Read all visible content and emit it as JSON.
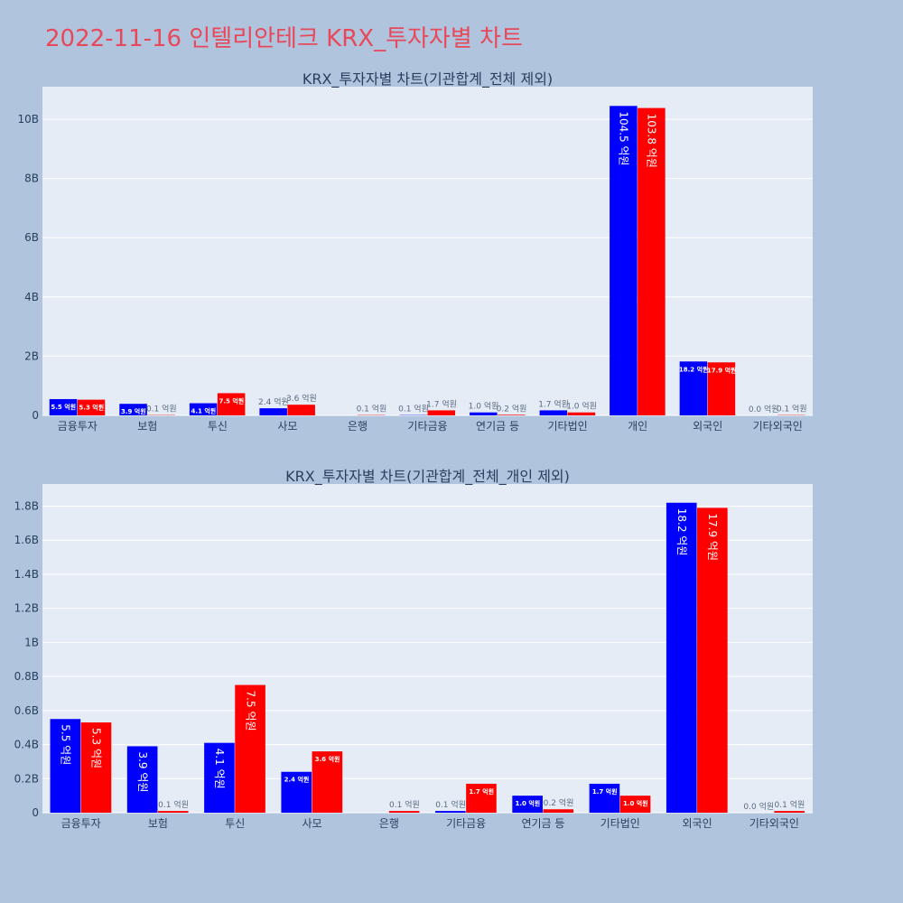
{
  "page_title": "2022-11-16 인텔리안테크 KRX_투자자별 차트",
  "colors": {
    "background": "#b0c4de",
    "plot_background": "#e5ecf6",
    "series_a": "#0000ff",
    "series_b": "#ff0000",
    "title_color": "#e8495a"
  },
  "chart_data": [
    {
      "type": "bar",
      "title": "KRX_투자자별 차트(기관합계_전체 제외)",
      "categories": [
        "금융투자",
        "보험",
        "투신",
        "사모",
        "은행",
        "기타금융",
        "연기금 등",
        "기타법인",
        "개인",
        "외국인",
        "기타외국인"
      ],
      "series": [
        {
          "color": "#0000ff",
          "values": [
            550000000.0,
            390000000.0,
            410000000.0,
            240000000.0,
            0,
            10000000.0,
            100000000.0,
            170000000.0,
            10450000000.0,
            1820000000.0,
            0
          ],
          "labels": [
            "5.5 억원",
            "3.9 억원",
            "4.1 억원",
            "2.4 억원",
            "",
            "0.1 억원",
            "1.0 억원",
            "1.7 억원",
            "104.5 억원",
            "18.2 억원",
            "0.0 억원"
          ]
        },
        {
          "color": "#ff0000",
          "values": [
            530000000.0,
            10000000.0,
            750000000.0,
            360000000.0,
            10000000.0,
            170000000.0,
            20000000.0,
            100000000.0,
            10380000000.0,
            1790000000.0,
            10000000.0
          ],
          "labels": [
            "5.3 억원",
            "0.1 억원",
            "7.5 억원",
            "3.6 억원",
            "0.1 억원",
            "1.7 억원",
            "0.2 억원",
            "1.0 억원",
            "103.8 억원",
            "17.9 억원",
            "0.1 억원"
          ]
        }
      ],
      "ylim": [
        0,
        11100000000.0
      ],
      "yticks": [
        0,
        2000000000.0,
        4000000000.0,
        6000000000.0,
        8000000000.0,
        10000000000.0
      ],
      "ytick_labels": [
        "0",
        "2B",
        "4B",
        "6B",
        "8B",
        "10B"
      ],
      "grid": true
    },
    {
      "type": "bar",
      "title": "KRX_투자자별 차트(기관합계_전체_개인 제외)",
      "categories": [
        "금융투자",
        "보험",
        "투신",
        "사모",
        "은행",
        "기타금융",
        "연기금 등",
        "기타법인",
        "외국인",
        "기타외국인"
      ],
      "series": [
        {
          "color": "#0000ff",
          "values": [
            550000000.0,
            390000000.0,
            410000000.0,
            240000000.0,
            0,
            10000000.0,
            100000000.0,
            170000000.0,
            1820000000.0,
            0
          ],
          "labels": [
            "5.5 억원",
            "3.9 억원",
            "4.1 억원",
            "2.4 억원",
            "",
            "0.1 억원",
            "1.0 억원",
            "1.7 억원",
            "18.2 억원",
            "0.0 억원"
          ]
        },
        {
          "color": "#ff0000",
          "values": [
            530000000.0,
            10000000.0,
            750000000.0,
            360000000.0,
            10000000.0,
            170000000.0,
            20000000.0,
            100000000.0,
            1790000000.0,
            10000000.0
          ],
          "labels": [
            "5.3 억원",
            "0.1 억원",
            "7.5 억원",
            "3.6 억원",
            "0.1 억원",
            "1.7 억원",
            "0.2 억원",
            "1.0 억원",
            "17.9 억원",
            "0.1 억원"
          ]
        }
      ],
      "ylim": [
        0,
        1930000000.0
      ],
      "yticks": [
        0,
        200000000.0,
        400000000.0,
        600000000.0,
        800000000.0,
        1000000000.0,
        1200000000.0,
        1400000000.0,
        1600000000.0,
        1800000000.0
      ],
      "ytick_labels": [
        "0",
        "0.2B",
        "0.4B",
        "0.6B",
        "0.8B",
        "1B",
        "1.2B",
        "1.4B",
        "1.6B",
        "1.8B"
      ],
      "grid": true
    }
  ]
}
